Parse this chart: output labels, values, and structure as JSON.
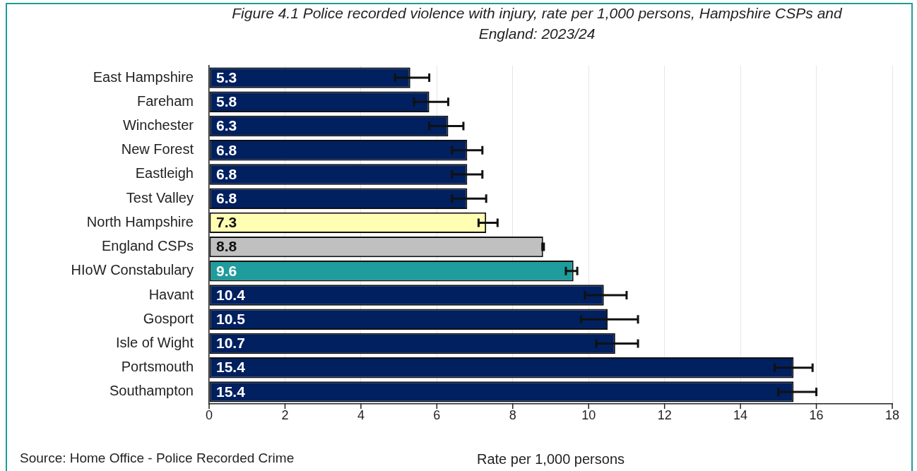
{
  "chart_data": {
    "type": "bar",
    "orientation": "horizontal",
    "title": "Figure 4.1 Police recorded violence with injury, rate per 1,000 persons, Hampshire CSPs and England: 2023/24",
    "xlabel": "Rate per 1,000 persons",
    "categories": [
      "East Hampshire",
      "Fareham",
      "Winchester",
      "New Forest",
      "Eastleigh",
      "Test Valley",
      "North Hampshire",
      "England CSPs",
      "HIoW Constabulary",
      "Havant",
      "Gosport",
      "Isle of Wight",
      "Portsmouth",
      "Southampton"
    ],
    "values": [
      5.3,
      5.8,
      6.3,
      6.8,
      6.8,
      6.8,
      7.3,
      8.8,
      9.6,
      10.4,
      10.5,
      10.7,
      15.4,
      15.4
    ],
    "colors": [
      "#002060",
      "#002060",
      "#002060",
      "#002060",
      "#002060",
      "#002060",
      "#ffffb3",
      "#c0c0c0",
      "#1f9c9c",
      "#002060",
      "#002060",
      "#002060",
      "#002060",
      "#002060"
    ],
    "errors": [
      [
        4.9,
        5.8
      ],
      [
        5.4,
        6.3
      ],
      [
        5.8,
        6.7
      ],
      [
        6.4,
        7.2
      ],
      [
        6.4,
        7.2
      ],
      [
        6.4,
        7.3
      ],
      [
        7.1,
        7.6
      ],
      [
        8.78,
        8.82
      ],
      [
        9.4,
        9.7
      ],
      [
        9.9,
        11.0
      ],
      [
        9.8,
        11.3
      ],
      [
        10.2,
        11.3
      ],
      [
        14.9,
        15.9
      ],
      [
        15.0,
        16.0
      ]
    ],
    "xlim": [
      0,
      18
    ],
    "xticks": [
      0,
      2,
      4,
      6,
      8,
      10,
      12,
      14,
      16,
      18
    ],
    "grid": "x",
    "legend": false,
    "data_labels": true,
    "annotations": [
      "Source: Home Office - Police Recorded Crime"
    ]
  }
}
